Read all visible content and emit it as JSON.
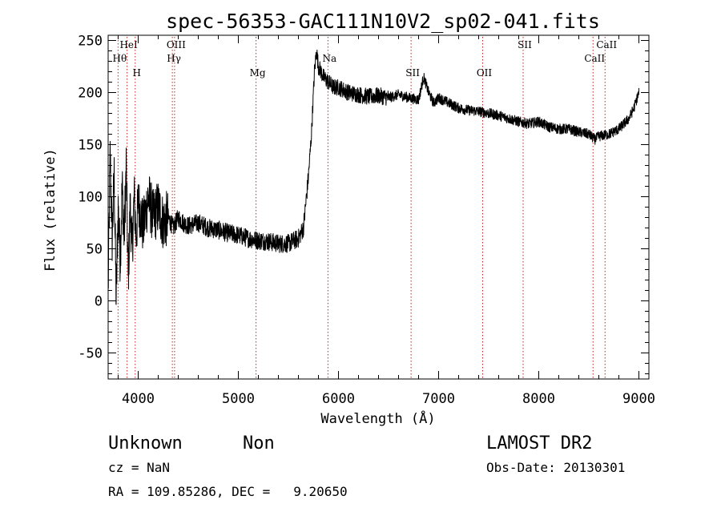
{
  "chart_data": {
    "type": "line",
    "title": "spec-56353-GAC111N10V2_sp02-041.fits",
    "xlabel": "Wavelength (Å)",
    "ylabel": "Flux (relative)",
    "xlim": [
      3700,
      9100
    ],
    "ylim": [
      -75,
      255
    ],
    "xticks": [
      4000,
      5000,
      6000,
      7000,
      8000,
      9000
    ],
    "yticks": [
      -50,
      0,
      50,
      100,
      150,
      200,
      250
    ],
    "grid": false,
    "series": [
      {
        "x": [
          3700,
          3720,
          3740,
          3760,
          3780,
          3800,
          3820,
          3840,
          3860,
          3880,
          3900,
          3920,
          3940,
          3960,
          3980,
          4000,
          4050,
          4100,
          4150,
          4200,
          4250,
          4300,
          4350,
          4400,
          4450,
          4500,
          4600,
          4700,
          4800,
          4900,
          5000,
          5100,
          5200,
          5300,
          5400,
          5500,
          5600,
          5650,
          5700,
          5730,
          5760,
          5780,
          5800,
          5850,
          5900,
          5950,
          6000,
          6100,
          6200,
          6300,
          6400,
          6500,
          6600,
          6700,
          6800,
          6850,
          6900,
          6950,
          7000,
          7100,
          7200,
          7300,
          7400,
          7500,
          7600,
          7700,
          7800,
          7900,
          8000,
          8100,
          8200,
          8300,
          8400,
          8500,
          8560,
          8600,
          8700,
          8800,
          8900,
          8950,
          9000
        ],
        "y": [
          10,
          140,
          60,
          120,
          0,
          90,
          40,
          110,
          60,
          130,
          20,
          90,
          50,
          100,
          60,
          95,
          70,
          100,
          80,
          90,
          75,
          80,
          70,
          80,
          75,
          72,
          75,
          70,
          68,
          65,
          63,
          60,
          58,
          57,
          55,
          55,
          60,
          70,
          120,
          160,
          220,
          240,
          225,
          215,
          210,
          205,
          205,
          200,
          198,
          196,
          197,
          195,
          198,
          195,
          193,
          215,
          200,
          190,
          195,
          190,
          185,
          183,
          182,
          180,
          178,
          175,
          172,
          170,
          172,
          167,
          165,
          165,
          162,
          160,
          155,
          158,
          160,
          165,
          175,
          185,
          200
        ]
      }
    ],
    "lines": [
      {
        "label": "Hθ",
        "x": 3799,
        "row": 1
      },
      {
        "label": "HeI",
        "x": 3889,
        "row": 0
      },
      {
        "label": "H",
        "x": 3970,
        "row": 2
      },
      {
        "label": "OIII",
        "x": 4363,
        "row": 0
      },
      {
        "label": "Hγ",
        "x": 4341,
        "row": 1
      },
      {
        "label": "Mg",
        "x": 5177,
        "row": 2
      },
      {
        "label": "Na",
        "x": 5895,
        "row": 1
      },
      {
        "label": "SII",
        "x": 6725,
        "row": 2
      },
      {
        "label": "OII",
        "x": 7440,
        "row": 2
      },
      {
        "label": "SII",
        "x": 7844,
        "row": 0
      },
      {
        "label": "CaII",
        "x": 8542,
        "row": 1
      },
      {
        "label": "CaII",
        "x": 8662,
        "row": 0
      }
    ]
  },
  "info": {
    "class_text": "Unknown",
    "subclass_text": "Non",
    "cz_text": "cz = NaN",
    "radec_text": "RA = 109.85286, DEC =   9.20650",
    "survey_text": "LAMOST DR2",
    "obsdate_text": "Obs-Date: 20130301"
  },
  "colors": {
    "spectrum": "#000000",
    "line_markers": "#cc2222",
    "axes": "#000000"
  }
}
